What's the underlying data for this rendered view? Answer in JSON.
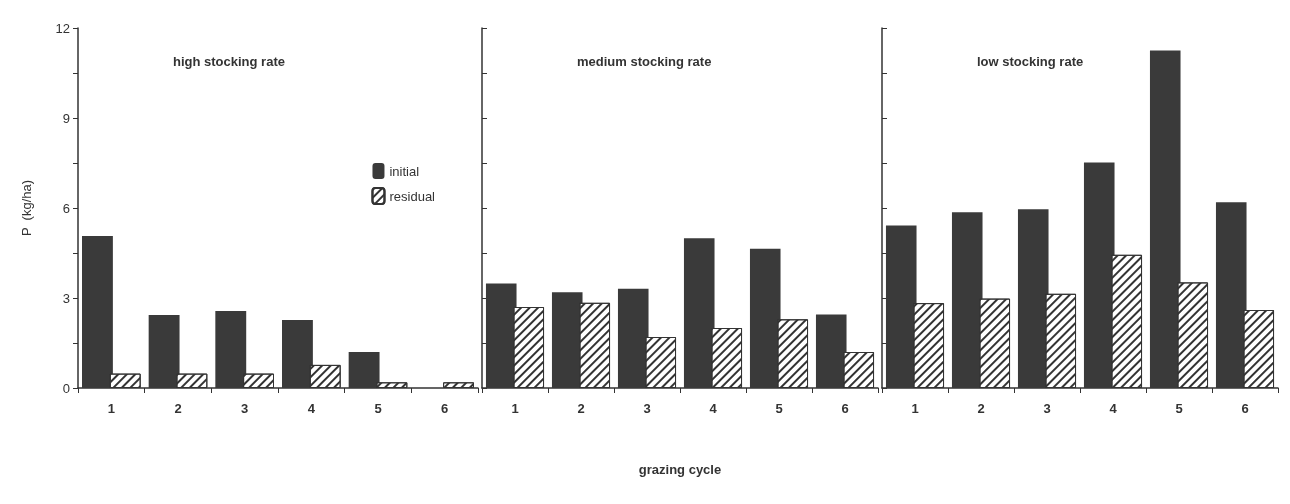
{
  "chart_data": [
    {
      "type": "bar",
      "title": "high stocking rate",
      "ylabel": "P  (kg/ha)",
      "categories": [
        "1",
        "2",
        "3",
        "4",
        "5",
        "6"
      ],
      "series": [
        {
          "name": "initial",
          "color": "#3a3a3a",
          "values": [
            5.07,
            2.43,
            2.57,
            2.27,
            1.2,
            0
          ]
        },
        {
          "name": "residual",
          "color": "#ffffff",
          "values": [
            0.48,
            0.48,
            0.48,
            0.77,
            0.19,
            0.19
          ]
        }
      ],
      "ylim": [
        0,
        12
      ],
      "yticks": [
        0,
        {
          "value": 1.5,
          "label": null
        },
        3,
        {
          "value": 4.5,
          "label": null
        },
        6,
        {
          "value": 7.5,
          "label": null
        },
        9,
        {
          "value": 10.5,
          "label": null
        },
        12
      ],
      "legend": "right",
      "grid": false
    },
    {
      "type": "bar",
      "title": "medium stocking rate",
      "xlabel": "grazing cycle",
      "categories": [
        "1",
        "2",
        "3",
        "4",
        "5",
        "6"
      ],
      "series": [
        {
          "color": "#3a3a3a",
          "values": [
            3.48,
            3.19,
            3.31,
            4.99,
            4.64,
            2.45
          ]
        },
        {
          "color": "#ffffff",
          "values": [
            2.7,
            2.84,
            1.7,
            2.0,
            2.29,
            1.2
          ]
        }
      ],
      "ylim": [
        0,
        12
      ],
      "yticks": [
        0,
        {
          "value": 1.5,
          "label": null
        },
        3,
        {
          "value": 4.5,
          "label": null
        },
        6,
        {
          "value": 7.5,
          "label": null
        },
        9,
        {
          "value": 10.5,
          "label": null
        },
        12
      ],
      "tick_labels": "x",
      "grid": false
    },
    {
      "type": "bar",
      "title": "low stocking rate",
      "categories": [
        "1",
        "2",
        "3",
        "4",
        "5",
        "6"
      ],
      "series": [
        {
          "color": "#3a3a3a",
          "values": [
            5.42,
            5.86,
            5.96,
            7.52,
            11.25,
            6.19
          ]
        },
        {
          "color": "#ffffff",
          "values": [
            2.83,
            2.98,
            3.14,
            4.44,
            3.52,
            2.6
          ]
        }
      ],
      "ylim": [
        0,
        12
      ],
      "yticks": [
        0,
        {
          "value": 1.5,
          "label": null
        },
        3,
        {
          "value": 4.5,
          "label": null
        },
        6,
        {
          "value": 7.5,
          "label": null
        },
        9,
        {
          "value": 10.5,
          "label": null
        },
        12
      ],
      "tick_labels": "x",
      "grid": false
    }
  ]
}
